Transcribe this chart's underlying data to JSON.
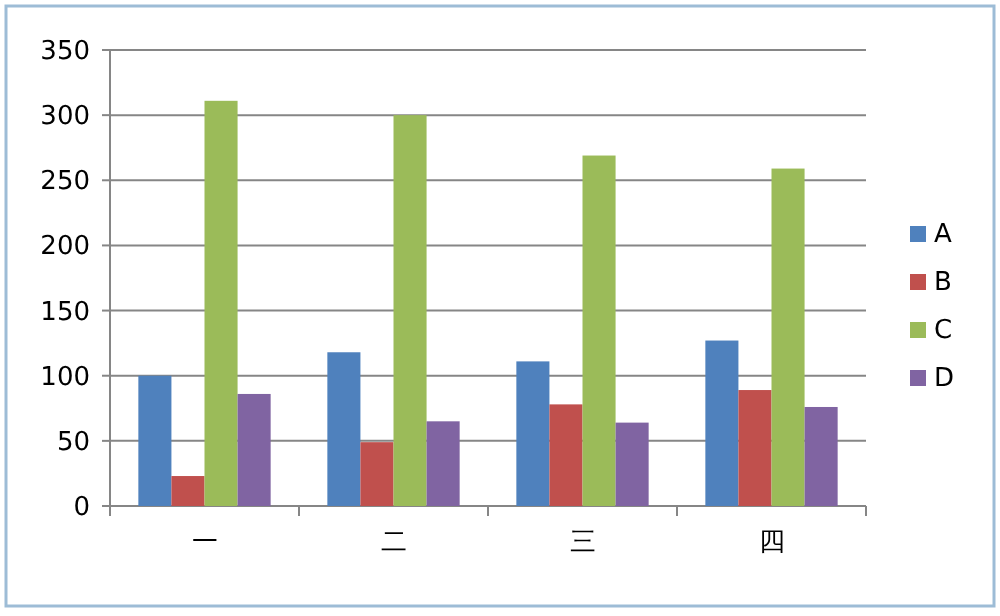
{
  "chart_data": {
    "type": "bar",
    "categories": [
      "一",
      "二",
      "三",
      "四"
    ],
    "series": [
      {
        "name": "A",
        "color": "#4f81bd",
        "values": [
          100,
          118,
          111,
          127
        ]
      },
      {
        "name": "B",
        "color": "#c0504d",
        "values": [
          23,
          49,
          78,
          89
        ]
      },
      {
        "name": "C",
        "color": "#9bbb59",
        "values": [
          311,
          300,
          269,
          259
        ]
      },
      {
        "name": "D",
        "color": "#8064a2",
        "values": [
          86,
          65,
          64,
          76
        ]
      }
    ],
    "ylim": [
      0,
      350
    ],
    "yticks": [
      0,
      50,
      100,
      150,
      200,
      250,
      300,
      350
    ],
    "grid": "y",
    "legend": "right"
  }
}
